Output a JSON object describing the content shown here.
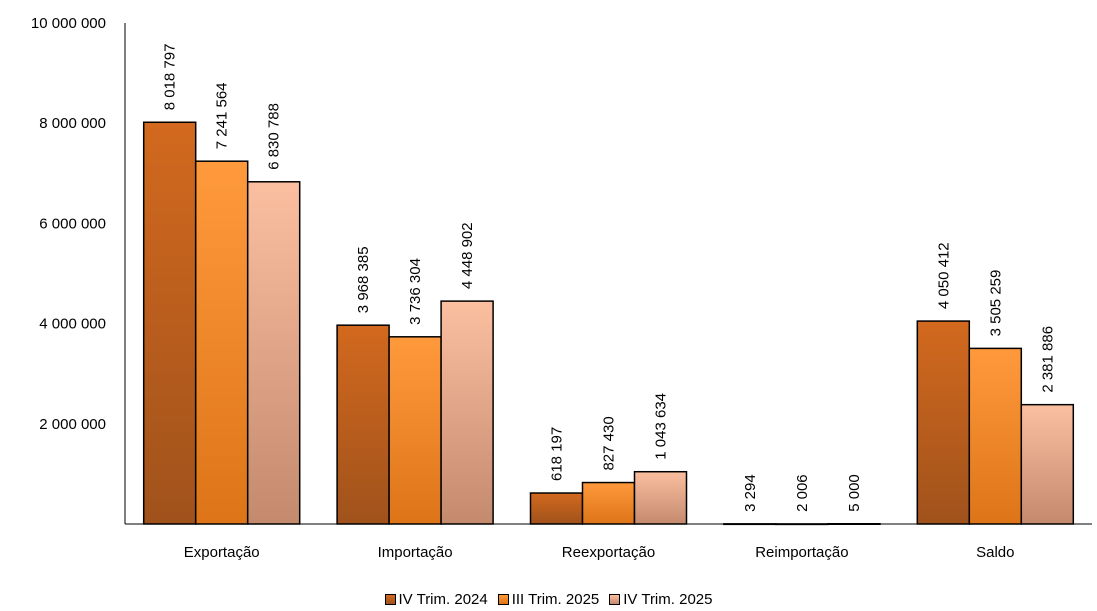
{
  "chart_data": {
    "type": "bar",
    "categories": [
      "Exportação",
      "Importação",
      "Reexportação",
      "Reimportação",
      "Saldo"
    ],
    "series": [
      {
        "name": "IV Trim. 2024",
        "values": [
          8018797,
          3968385,
          618197,
          3294,
          4050412
        ],
        "labels": [
          "8 018 797",
          "3 968 385",
          "618 197",
          "3 294",
          "4 050 412"
        ],
        "color_top": "#d2691e",
        "color_bottom": "#a0521c"
      },
      {
        "name": "III Trim. 2025",
        "values": [
          7241564,
          3736304,
          827430,
          2006,
          3505259
        ],
        "labels": [
          "7 241 564",
          "3 736 304",
          "827 430",
          "2 006",
          "3 505 259"
        ],
        "color_top": "#ff9a3c",
        "color_bottom": "#dd7418"
      },
      {
        "name": "IV Trim. 2025",
        "values": [
          6830788,
          4448902,
          1043634,
          5000,
          2381886
        ],
        "labels": [
          "6 830 788",
          "4 448 902",
          "1 043 634",
          "5 000",
          "2 381 886"
        ],
        "color_top": "#fbbfa0",
        "color_bottom": "#c48a6e"
      }
    ],
    "ylim": [
      0,
      10000000
    ],
    "yticks": [
      2000000,
      4000000,
      6000000,
      8000000,
      10000000
    ],
    "ytick_labels": [
      "2 000 000",
      "4 000 000",
      "6 000 000",
      "8 000 000",
      "10 000 000"
    ],
    "grid": false,
    "legend_position": "bottom"
  }
}
